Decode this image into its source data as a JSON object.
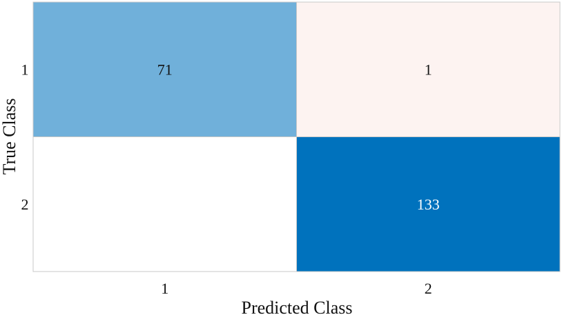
{
  "chart_data": {
    "type": "heatmap",
    "title": "",
    "xlabel": "Predicted Class",
    "ylabel": "True Class",
    "x_categories": [
      "1",
      "2"
    ],
    "y_categories": [
      "1",
      "2"
    ],
    "matrix": [
      [
        71,
        1
      ],
      [
        null,
        133
      ]
    ],
    "cell_colors": [
      [
        "#70b0da",
        "#fdf3f1"
      ],
      [
        "#ffffff",
        "#0072bd"
      ]
    ],
    "cell_text_colors": [
      [
        "#111111",
        "#111111"
      ],
      [
        "#111111",
        "#ffffff"
      ]
    ],
    "grid": false,
    "legend": "none"
  }
}
